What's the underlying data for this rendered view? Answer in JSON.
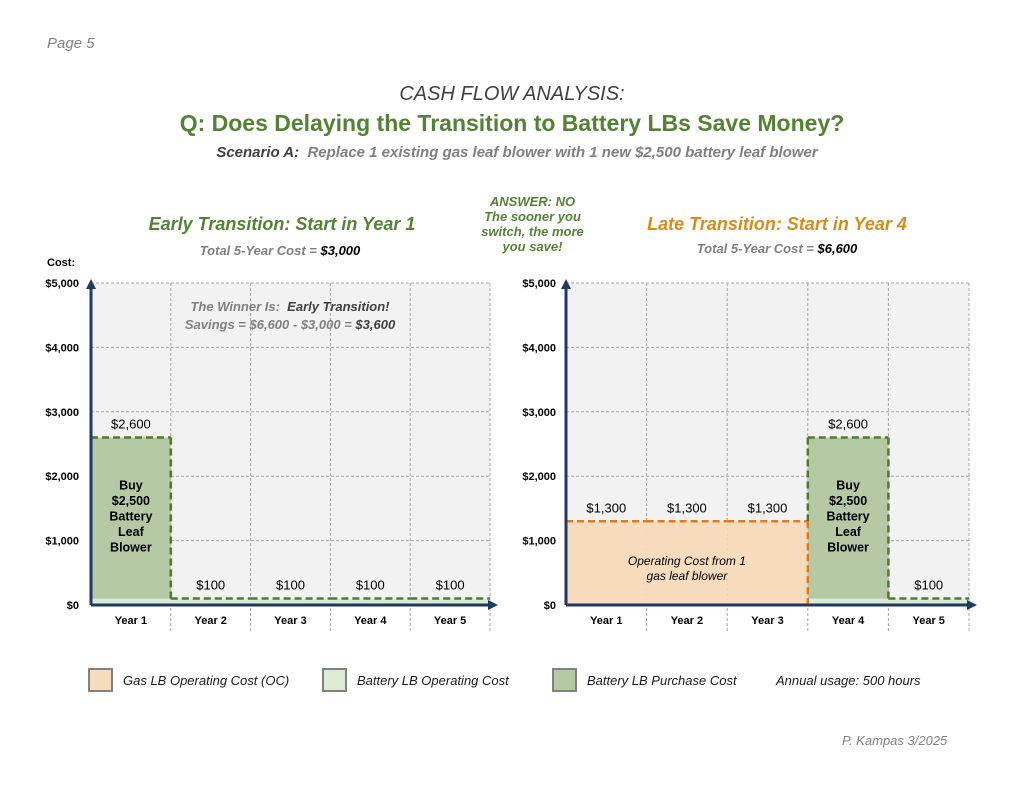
{
  "page_label": "Page 5",
  "heading": "CASH FLOW ANALYSIS:",
  "question": "Q:  Does Delaying the Transition to Battery LBs Save Money?",
  "scenario_prefix": "Scenario A:",
  "scenario_text": "Replace 1 existing gas leaf blower with 1 new $2,500 battery leaf blower",
  "answer_lines": [
    "ANSWER: NO",
    "The sooner you",
    "switch, the more",
    "you save!"
  ],
  "y_axis_label": "Cost:",
  "winner_prefix": "The Winner Is:",
  "winner_name": "Early Transition!",
  "savings_prefix": "Savings = $6,600 - $3,000 =",
  "savings_value": "$3,600",
  "colors": {
    "green_title": "#548235",
    "orange_title": "#d98b1a",
    "purchase_fill": "#b5c9a5",
    "battery_oc_fill": "#dcebd3",
    "gas_oc_fill": "#f6dcbd",
    "green_dash": "#4e7c2c",
    "orange_dash": "#e07a1f"
  },
  "legend": [
    {
      "label": "Gas LB Operating Cost (OC)",
      "color": "#f6dcbd"
    },
    {
      "label": "Battery LB Operating Cost",
      "color": "#dcebd3"
    },
    {
      "label": "Battery LB Purchase Cost",
      "color": "#b5c9a5"
    }
  ],
  "annual_usage": "Annual usage: 500 hours",
  "footer": "P. Kampas 3/2025",
  "chart_data": [
    {
      "type": "bar",
      "title": "Early Transition:  Start in Year 1",
      "subtitle_prefix": "Total 5-Year Cost =",
      "subtitle_value": "$3,000",
      "categories": [
        "Year 1",
        "Year 2",
        "Year 3",
        "Year 4",
        "Year 5"
      ],
      "ylim": [
        0,
        5000
      ],
      "yticks": [
        0,
        1000,
        2000,
        3000,
        4000,
        5000
      ],
      "ytick_labels": [
        "$0",
        "$1,000",
        "$2,000",
        "$3,000",
        "$4,000",
        "$5,000"
      ],
      "grid": true,
      "series": [
        {
          "name": "Battery LB Operating Cost",
          "values": [
            100,
            100,
            100,
            100,
            100
          ]
        },
        {
          "name": "Battery LB Purchase Cost",
          "values": [
            2500,
            0,
            0,
            0,
            0
          ]
        },
        {
          "name": "Gas LB Operating Cost (OC)",
          "values": [
            0,
            0,
            0,
            0,
            0
          ]
        }
      ],
      "totals": [
        2600,
        100,
        100,
        100,
        100
      ],
      "data_labels": [
        "$2,600",
        "$100",
        "$100",
        "$100",
        "$100"
      ],
      "annotations": [
        {
          "text": "Buy\n$2,500\nBattery\nLeaf\nBlower",
          "year": 1
        }
      ]
    },
    {
      "type": "bar",
      "title": "Late Transition:  Start in Year 4",
      "subtitle_prefix": "Total 5-Year Cost =",
      "subtitle_value": "$6,600",
      "categories": [
        "Year 1",
        "Year 2",
        "Year 3",
        "Year 4",
        "Year 5"
      ],
      "ylim": [
        0,
        5000
      ],
      "yticks": [
        0,
        1000,
        2000,
        3000,
        4000,
        5000
      ],
      "ytick_labels": [
        "$0",
        "$1,000",
        "$2,000",
        "$3,000",
        "$4,000",
        "$5,000"
      ],
      "grid": true,
      "series": [
        {
          "name": "Gas LB Operating Cost (OC)",
          "values": [
            1300,
            1300,
            1300,
            0,
            0
          ]
        },
        {
          "name": "Battery LB Operating Cost",
          "values": [
            0,
            0,
            0,
            100,
            100
          ]
        },
        {
          "name": "Battery LB Purchase Cost",
          "values": [
            0,
            0,
            0,
            2500,
            0
          ]
        }
      ],
      "totals": [
        1300,
        1300,
        1300,
        2600,
        100
      ],
      "data_labels": [
        "$1,300",
        "$1,300",
        "$1,300",
        "$2,600",
        "$100"
      ],
      "annotations": [
        {
          "text": "Operating Cost from 1\ngas leaf blower",
          "year": 2
        },
        {
          "text": "Buy\n$2,500\nBattery\nLeaf\nBlower",
          "year": 4
        }
      ]
    }
  ]
}
